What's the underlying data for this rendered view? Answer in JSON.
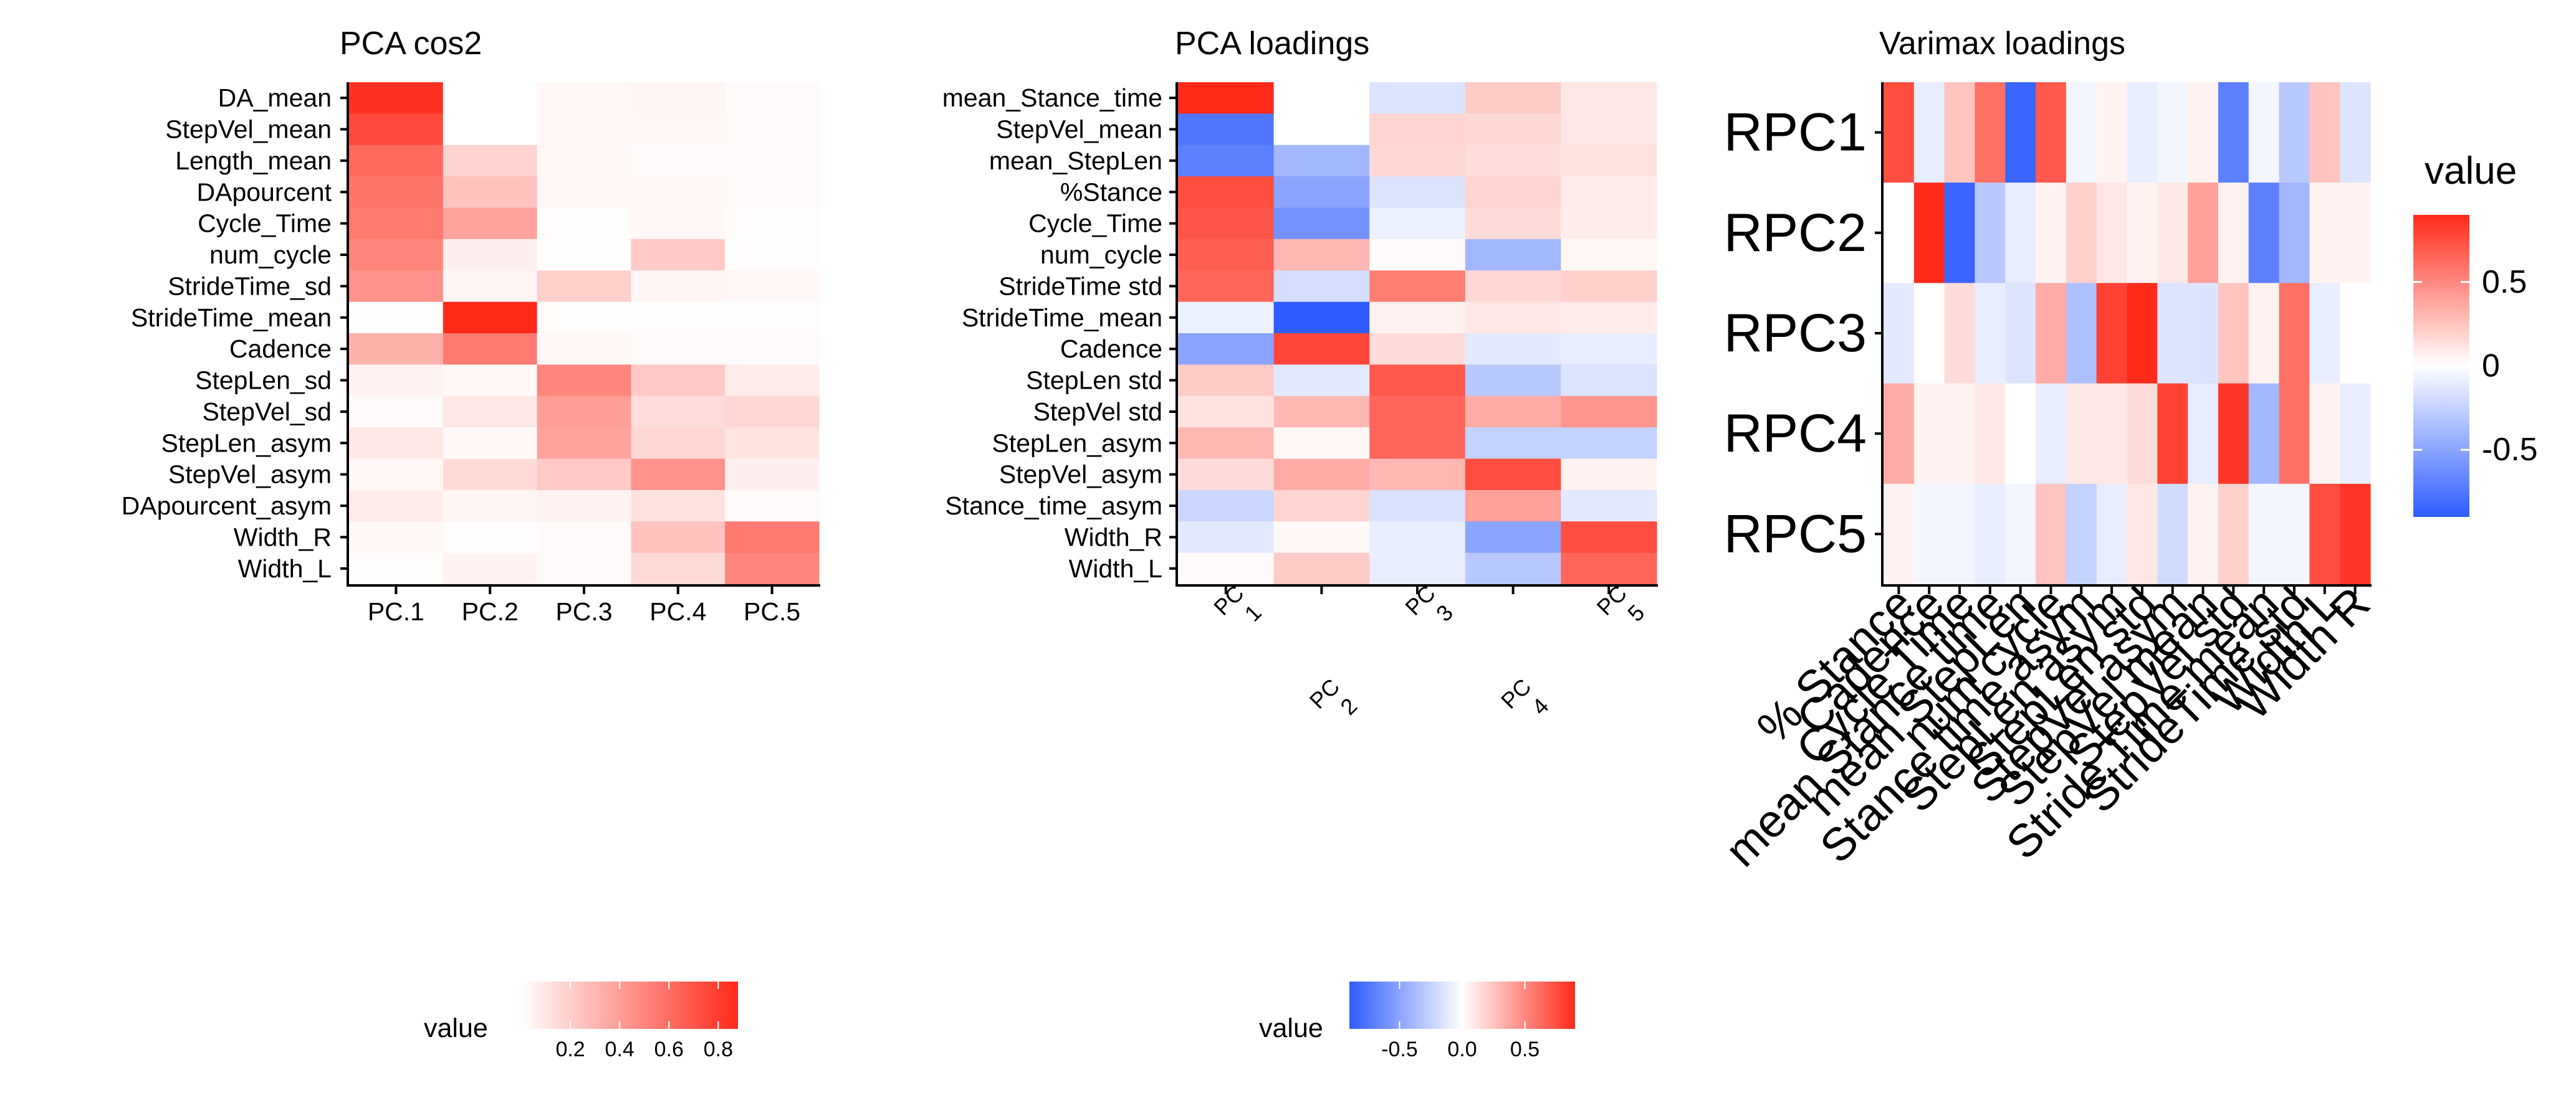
{
  "chart_data": [
    {
      "type": "heatmap",
      "title": "PCA cos2",
      "x": [
        "PC.1",
        "PC.2",
        "PC.3",
        "PC.4",
        "PC.5"
      ],
      "y": [
        "DA_mean",
        "StepVel_mean",
        "Length_mean",
        "DApourcent",
        "Cycle_Time",
        "num_cycle",
        "StrideTime_sd",
        "StrideTime_mean",
        "Cadence",
        "StepLen_sd",
        "StepVel_sd",
        "StepLen_asym",
        "StepVel_asym",
        "DApourcent_asym",
        "Width_R",
        "Width_L"
      ],
      "values": [
        [
          0.85,
          0.0,
          0.03,
          0.04,
          0.02
        ],
        [
          0.75,
          0.0,
          0.03,
          0.03,
          0.02
        ],
        [
          0.62,
          0.18,
          0.03,
          0.02,
          0.02
        ],
        [
          0.58,
          0.25,
          0.03,
          0.03,
          0.02
        ],
        [
          0.55,
          0.38,
          0.01,
          0.03,
          0.01
        ],
        [
          0.5,
          0.06,
          0.01,
          0.22,
          0.01
        ],
        [
          0.45,
          0.04,
          0.2,
          0.04,
          0.03
        ],
        [
          0.01,
          0.88,
          0.01,
          0.01,
          0.01
        ],
        [
          0.32,
          0.55,
          0.03,
          0.02,
          0.02
        ],
        [
          0.05,
          0.03,
          0.5,
          0.22,
          0.08
        ],
        [
          0.02,
          0.1,
          0.4,
          0.14,
          0.16
        ],
        [
          0.1,
          0.03,
          0.38,
          0.16,
          0.11
        ],
        [
          0.03,
          0.15,
          0.22,
          0.45,
          0.06
        ],
        [
          0.08,
          0.04,
          0.05,
          0.12,
          0.02
        ],
        [
          0.03,
          0.01,
          0.02,
          0.25,
          0.55
        ],
        [
          0.01,
          0.05,
          0.02,
          0.15,
          0.5
        ]
      ],
      "colorbar": {
        "title": "value",
        "min": 0.0,
        "max": 0.88,
        "ticks": [
          0.2,
          0.4,
          0.6,
          0.8
        ],
        "tick_labels": [
          "0.2",
          "0.4",
          "0.6",
          "0.8"
        ],
        "low": "#ffffff",
        "high": "#ff2a1a",
        "placement": "bottom"
      }
    },
    {
      "type": "heatmap",
      "title": "PCA loadings",
      "x": [
        "PC 1",
        "PC 2",
        "PC 3",
        "PC 4",
        "PC 5"
      ],
      "x_tick_lines": [
        [
          "PC",
          "1"
        ],
        [
          "PC",
          "2"
        ],
        [
          "PC",
          "3"
        ],
        [
          "PC",
          "4"
        ],
        [
          "PC",
          "5"
        ]
      ],
      "y": [
        "mean_Stance_time",
        "StepVel_mean",
        "mean_StepLen",
        "%Stance",
        "Cycle_Time",
        "num_cycle",
        "StrideTime std",
        "StrideTime_mean",
        "Cadence",
        "StepLen std",
        "StepVel std",
        "StepLen_asym",
        "StepVel_asym",
        "Stance_time_asym",
        "Width_R",
        "Width_L"
      ],
      "values": [
        [
          0.9,
          0.0,
          -0.15,
          0.22,
          0.1
        ],
        [
          -0.75,
          0.0,
          0.18,
          0.16,
          0.1
        ],
        [
          -0.7,
          -0.4,
          0.16,
          0.14,
          0.12
        ],
        [
          0.75,
          -0.5,
          -0.15,
          0.18,
          0.08
        ],
        [
          0.72,
          -0.6,
          -0.08,
          0.15,
          0.08
        ],
        [
          0.68,
          0.3,
          0.02,
          -0.4,
          0.03
        ],
        [
          0.65,
          -0.18,
          0.55,
          0.16,
          0.2
        ],
        [
          -0.08,
          -0.92,
          0.06,
          0.1,
          0.08
        ],
        [
          -0.5,
          0.78,
          0.15,
          -0.12,
          -0.1
        ],
        [
          0.22,
          -0.12,
          0.7,
          -0.3,
          -0.15
        ],
        [
          0.12,
          0.3,
          0.65,
          0.35,
          0.45
        ],
        [
          0.3,
          0.03,
          0.65,
          -0.25,
          -0.25
        ],
        [
          0.15,
          0.35,
          0.3,
          0.75,
          0.05
        ],
        [
          -0.22,
          0.18,
          -0.16,
          0.4,
          -0.12
        ],
        [
          -0.12,
          0.03,
          -0.1,
          -0.5,
          0.75
        ],
        [
          0.02,
          0.22,
          -0.1,
          -0.3,
          0.65
        ]
      ],
      "colorbar": {
        "title": "value",
        "min": -0.9,
        "max": 0.9,
        "ticks": [
          -0.5,
          0.0,
          0.5
        ],
        "tick_labels": [
          "-0.5",
          "0.0",
          "0.5"
        ],
        "low": "#2e5cff",
        "mid": "#ffffff",
        "high": "#ff2a1a",
        "placement": "bottom"
      }
    },
    {
      "type": "heatmap",
      "title": "Varimax loadings",
      "x": [
        "% Stance",
        "Cadence",
        "Cycle Time",
        "mean Stance time",
        "mean StepLen",
        "num cycle",
        "Stance time asym",
        "StepLen asym",
        "StepLen std",
        "StepVel asym",
        "StepVel mean",
        "StepVel std",
        "Stride Time mean",
        "StrideTime std",
        "Width L",
        "Width R"
      ],
      "y": [
        "RPC1",
        "RPC2",
        "RPC3",
        "RPC4",
        "RPC5"
      ],
      "values": [
        [
          0.75,
          -0.1,
          0.25,
          0.6,
          -0.85,
          0.7,
          -0.05,
          0.05,
          -0.1,
          -0.05,
          0.05,
          -0.7,
          -0.05,
          -0.3,
          0.25,
          -0.15
        ],
        [
          0.0,
          0.95,
          -0.85,
          -0.3,
          -0.1,
          0.05,
          0.2,
          0.1,
          0.05,
          0.1,
          0.4,
          0.05,
          -0.7,
          -0.4,
          0.05,
          0.05
        ],
        [
          -0.12,
          0.0,
          0.15,
          -0.1,
          -0.15,
          0.35,
          -0.35,
          0.8,
          0.9,
          -0.15,
          -0.15,
          0.25,
          0.05,
          0.6,
          -0.1,
          0.0
        ],
        [
          0.35,
          0.05,
          0.05,
          0.1,
          0.0,
          -0.1,
          0.1,
          0.1,
          0.15,
          0.8,
          -0.1,
          0.85,
          -0.4,
          0.6,
          0.05,
          -0.1
        ],
        [
          0.05,
          -0.05,
          -0.05,
          -0.1,
          -0.05,
          0.25,
          -0.25,
          -0.1,
          0.1,
          -0.2,
          0.05,
          0.2,
          -0.05,
          -0.05,
          0.75,
          0.85
        ]
      ],
      "colorbar": {
        "title": "value",
        "min": -0.9,
        "max": 0.9,
        "ticks": [
          0.5,
          0.0,
          -0.5
        ],
        "tick_labels": [
          "0.5",
          "0",
          "-0.5"
        ],
        "low": "#2e5cff",
        "mid": "#ffffff",
        "high": "#ff2a1a",
        "placement": "right"
      }
    }
  ]
}
